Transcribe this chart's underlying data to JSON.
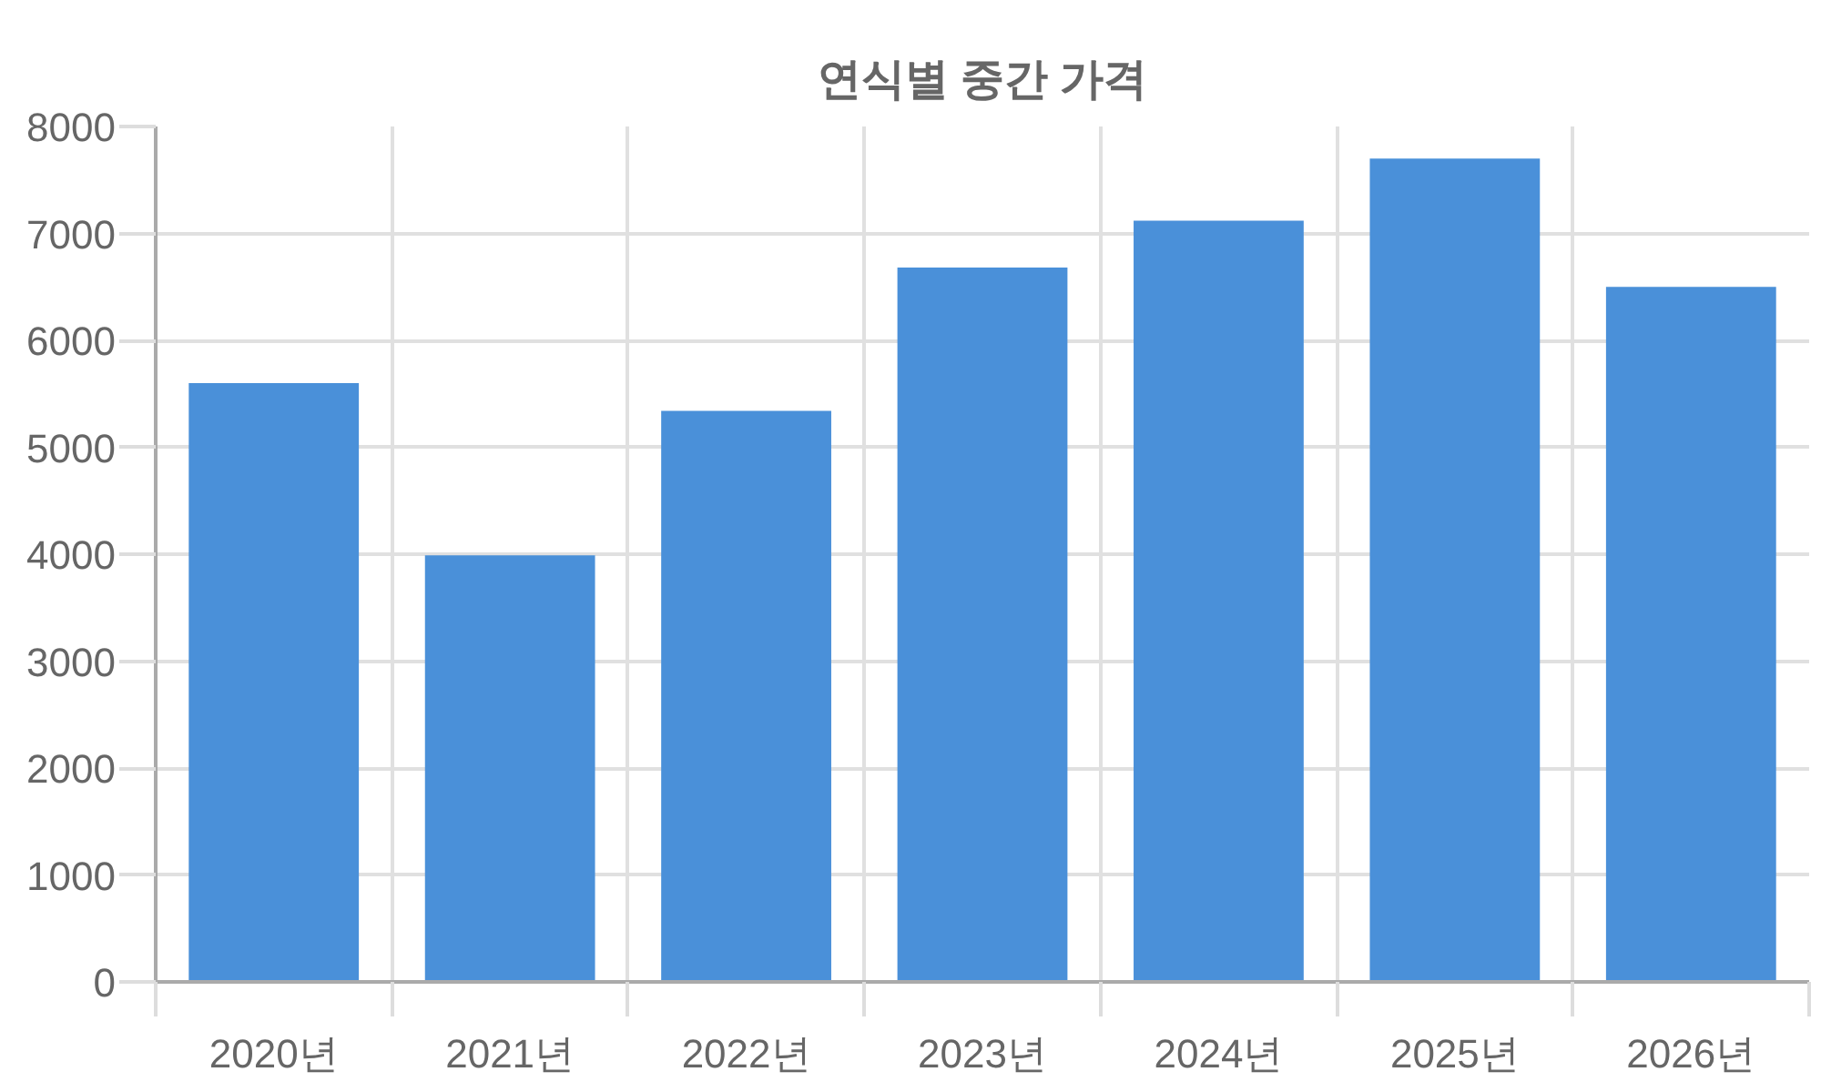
{
  "chart_data": {
    "type": "bar",
    "title": "연식별 중간 가격",
    "categories": [
      "2020년",
      "2021년",
      "2022년",
      "2023년",
      "2024년",
      "2025년",
      "2026년"
    ],
    "values": [
      5600,
      3990,
      5340,
      6680,
      7120,
      7700,
      6500
    ],
    "color": "#4a90d9",
    "ylim": [
      0,
      8000
    ],
    "yticks": [
      0,
      1000,
      2000,
      3000,
      4000,
      5000,
      6000,
      7000,
      8000
    ],
    "grid": true
  }
}
